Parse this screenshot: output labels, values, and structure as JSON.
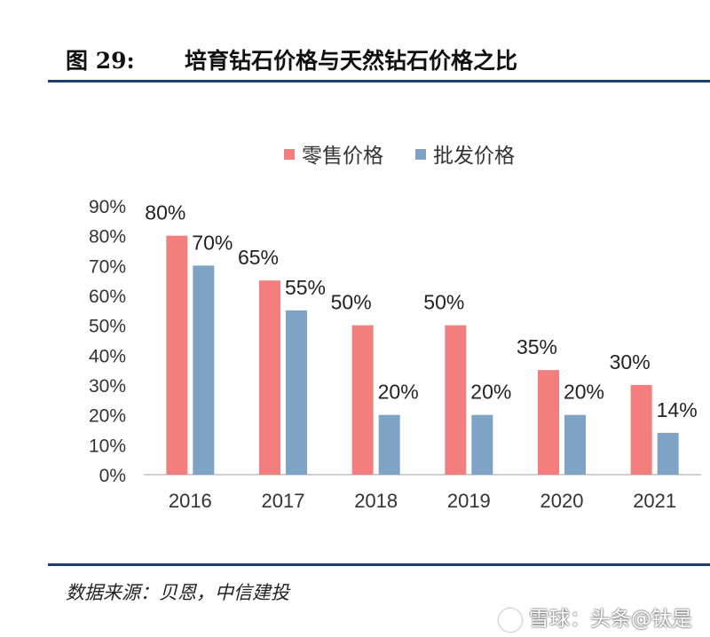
{
  "figure": {
    "number": "图 29:",
    "title": "培育钻石价格与天然钻石价格之比"
  },
  "source": "数据来源：贝恩，中信建投",
  "watermark": "雪球：头条@钛是",
  "chart_data": {
    "type": "bar",
    "categories": [
      "2016",
      "2017",
      "2018",
      "2019",
      "2020",
      "2021"
    ],
    "series": [
      {
        "name": "零售价格",
        "values": [
          80,
          65,
          50,
          50,
          35,
          30
        ],
        "labels": [
          "80%",
          "65%",
          "50%",
          "50%",
          "35%",
          "30%"
        ],
        "color": "#f47d7d"
      },
      {
        "name": "批发价格",
        "values": [
          70,
          55,
          20,
          20,
          20,
          14
        ],
        "labels": [
          "70%",
          "55%",
          "20%",
          "20%",
          "20%",
          "14%"
        ],
        "color": "#7fa3c4"
      }
    ],
    "ylim": [
      0,
      90
    ],
    "yticks": [
      0,
      10,
      20,
      30,
      40,
      50,
      60,
      70,
      80,
      90
    ],
    "ytick_labels": [
      "0%",
      "10%",
      "20%",
      "30%",
      "40%",
      "50%",
      "60%",
      "70%",
      "80%",
      "90%"
    ],
    "legend_position": "top-center",
    "grid": false
  }
}
